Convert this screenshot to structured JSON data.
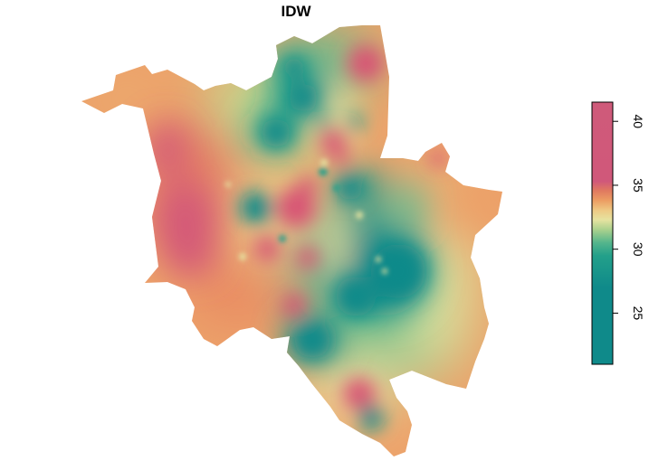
{
  "title": "IDW",
  "legend": {
    "min": 21,
    "max": 41.5,
    "ticks": [
      {
        "value": 25,
        "label": "25"
      },
      {
        "value": 30,
        "label": "30"
      },
      {
        "value": 35,
        "label": "35"
      },
      {
        "value": 40,
        "label": "40"
      }
    ],
    "colors": [
      {
        "value": 21.0,
        "color": "#0f8a8a"
      },
      {
        "value": 27.0,
        "color": "#0f8a8a"
      },
      {
        "value": 29.5,
        "color": "#23a08a"
      },
      {
        "value": 30.5,
        "color": "#54b58c"
      },
      {
        "value": 31.5,
        "color": "#a8d08d"
      },
      {
        "value": 32.3,
        "color": "#e6e3a0"
      },
      {
        "value": 33.0,
        "color": "#eecb86"
      },
      {
        "value": 33.8,
        "color": "#ec9e63"
      },
      {
        "value": 34.6,
        "color": "#e07860"
      },
      {
        "value": 35.3,
        "color": "#d0587a"
      },
      {
        "value": 41.5,
        "color": "#cf5a7a"
      }
    ]
  },
  "colors": {
    "low": "#0f8a8a",
    "mid": "#e6e3a0",
    "high": "#cf5a7a"
  }
}
